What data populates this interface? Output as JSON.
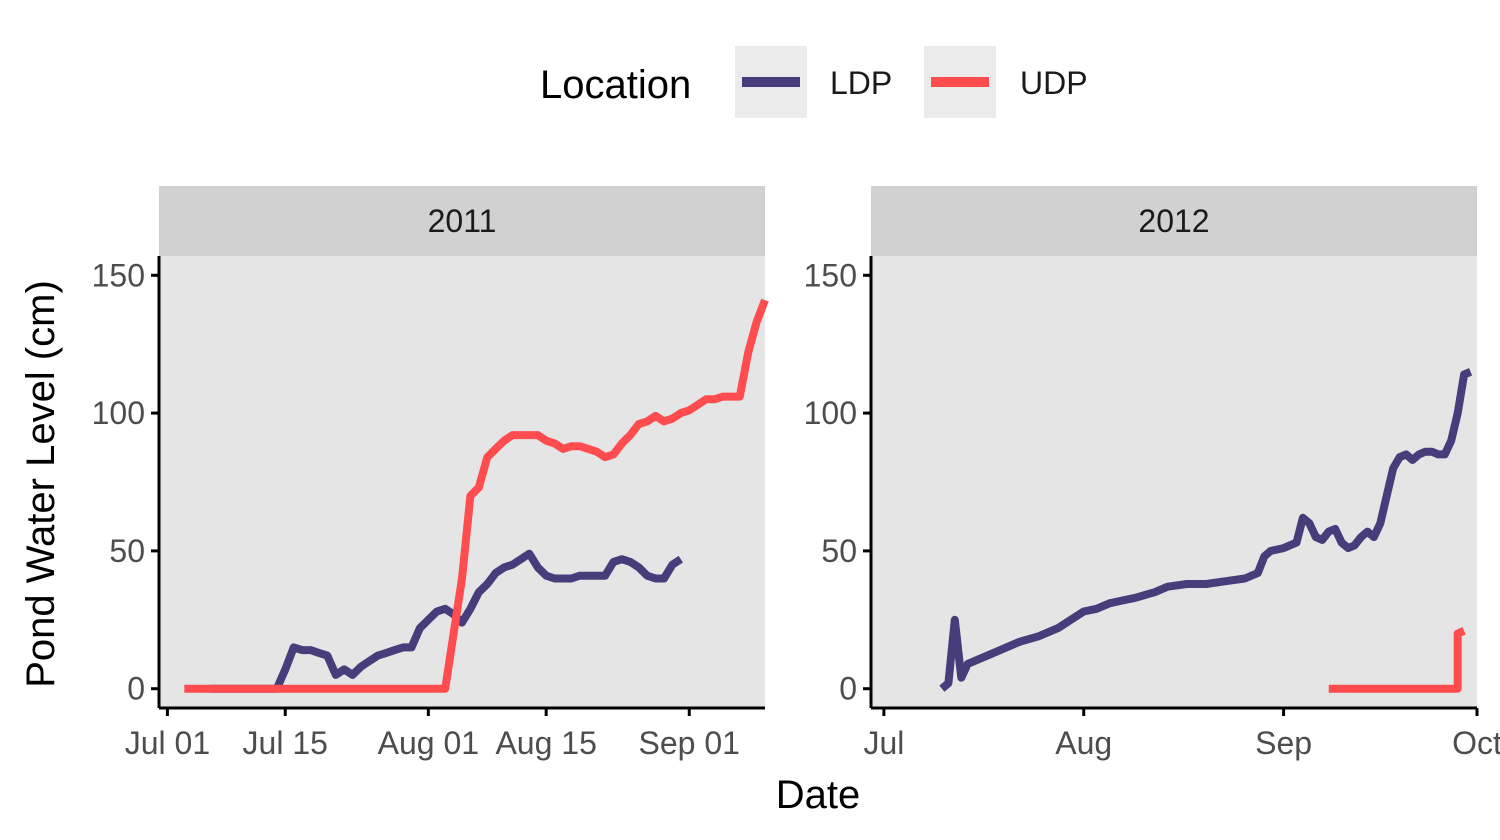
{
  "legend": {
    "title": "Location",
    "items": [
      {
        "name": "LDP",
        "color": "#483D7A"
      },
      {
        "name": "UDP",
        "color": "#FF4D4F"
      }
    ]
  },
  "axes": {
    "xlabel": "Date",
    "ylabel": "Pond Water Level (cm)"
  },
  "chart_data": [
    {
      "type": "line",
      "facet": "2011",
      "xlim": [
        "2011-06-30",
        "2011-09-10"
      ],
      "ylim": [
        -7,
        157
      ],
      "x_ticks": [
        {
          "date": "2011-07-01",
          "label": "Jul 01"
        },
        {
          "date": "2011-07-15",
          "label": "Jul 15"
        },
        {
          "date": "2011-08-01",
          "label": "Aug 01"
        },
        {
          "date": "2011-08-15",
          "label": "Aug 15"
        },
        {
          "date": "2011-09-01",
          "label": "Sep 01"
        }
      ],
      "y_ticks": [
        0,
        50,
        100,
        150
      ],
      "series": [
        {
          "name": "LDP",
          "color": "#483D7A",
          "points": [
            [
              "2011-07-06",
              0
            ],
            [
              "2011-07-14",
              0
            ],
            [
              "2011-07-15",
              7
            ],
            [
              "2011-07-16",
              15
            ],
            [
              "2011-07-17",
              14
            ],
            [
              "2011-07-18",
              14
            ],
            [
              "2011-07-19",
              13
            ],
            [
              "2011-07-20",
              12
            ],
            [
              "2011-07-21",
              5
            ],
            [
              "2011-07-22",
              7
            ],
            [
              "2011-07-23",
              5
            ],
            [
              "2011-07-24",
              8
            ],
            [
              "2011-07-25",
              10
            ],
            [
              "2011-07-26",
              12
            ],
            [
              "2011-07-27",
              13
            ],
            [
              "2011-07-28",
              14
            ],
            [
              "2011-07-29",
              15
            ],
            [
              "2011-07-30",
              15
            ],
            [
              "2011-07-31",
              22
            ],
            [
              "2011-08-01",
              25
            ],
            [
              "2011-08-02",
              28
            ],
            [
              "2011-08-03",
              29
            ],
            [
              "2011-08-04",
              27
            ],
            [
              "2011-08-05",
              24
            ],
            [
              "2011-08-06",
              29
            ],
            [
              "2011-08-07",
              35
            ],
            [
              "2011-08-08",
              38
            ],
            [
              "2011-08-09",
              42
            ],
            [
              "2011-08-10",
              44
            ],
            [
              "2011-08-11",
              45
            ],
            [
              "2011-08-12",
              47
            ],
            [
              "2011-08-13",
              49
            ],
            [
              "2011-08-14",
              44
            ],
            [
              "2011-08-15",
              41
            ],
            [
              "2011-08-16",
              40
            ],
            [
              "2011-08-17",
              40
            ],
            [
              "2011-08-18",
              40
            ],
            [
              "2011-08-19",
              41
            ],
            [
              "2011-08-20",
              41
            ],
            [
              "2011-08-21",
              41
            ],
            [
              "2011-08-22",
              41
            ],
            [
              "2011-08-23",
              46
            ],
            [
              "2011-08-24",
              47
            ],
            [
              "2011-08-25",
              46
            ],
            [
              "2011-08-26",
              44
            ],
            [
              "2011-08-27",
              41
            ],
            [
              "2011-08-28",
              40
            ],
            [
              "2011-08-29",
              40
            ],
            [
              "2011-08-30",
              45
            ],
            [
              "2011-08-31",
              47
            ]
          ]
        },
        {
          "name": "UDP",
          "color": "#FF4D4F",
          "points": [
            [
              "2011-07-03",
              0
            ],
            [
              "2011-08-03",
              0
            ],
            [
              "2011-08-05",
              40
            ],
            [
              "2011-08-06",
              70
            ],
            [
              "2011-08-07",
              73
            ],
            [
              "2011-08-08",
              84
            ],
            [
              "2011-08-09",
              87
            ],
            [
              "2011-08-10",
              90
            ],
            [
              "2011-08-11",
              92
            ],
            [
              "2011-08-12",
              92
            ],
            [
              "2011-08-13",
              92
            ],
            [
              "2011-08-14",
              92
            ],
            [
              "2011-08-15",
              90
            ],
            [
              "2011-08-16",
              89
            ],
            [
              "2011-08-17",
              87
            ],
            [
              "2011-08-18",
              88
            ],
            [
              "2011-08-19",
              88
            ],
            [
              "2011-08-20",
              87
            ],
            [
              "2011-08-21",
              86
            ],
            [
              "2011-08-22",
              84
            ],
            [
              "2011-08-23",
              85
            ],
            [
              "2011-08-24",
              89
            ],
            [
              "2011-08-25",
              92
            ],
            [
              "2011-08-26",
              96
            ],
            [
              "2011-08-27",
              97
            ],
            [
              "2011-08-28",
              99
            ],
            [
              "2011-08-29",
              97
            ],
            [
              "2011-08-30",
              98
            ],
            [
              "2011-08-31",
              100
            ],
            [
              "2011-09-01",
              101
            ],
            [
              "2011-09-02",
              103
            ],
            [
              "2011-09-03",
              105
            ],
            [
              "2011-09-04",
              105
            ],
            [
              "2011-09-05",
              106
            ],
            [
              "2011-09-06",
              106
            ],
            [
              "2011-09-07",
              106
            ],
            [
              "2011-09-08",
              122
            ],
            [
              "2011-09-09",
              133
            ],
            [
              "2011-09-10",
              141
            ]
          ]
        }
      ]
    },
    {
      "type": "line",
      "facet": "2012",
      "xlim": [
        "2012-06-29",
        "2012-10-01"
      ],
      "ylim": [
        -7,
        157
      ],
      "x_ticks": [
        {
          "date": "2012-07-01",
          "label": "Jul"
        },
        {
          "date": "2012-08-01",
          "label": "Aug"
        },
        {
          "date": "2012-09-01",
          "label": "Sep"
        },
        {
          "date": "2012-10-01",
          "label": "Oct"
        }
      ],
      "y_ticks": [
        0,
        50,
        100,
        150
      ],
      "series": [
        {
          "name": "LDP",
          "color": "#483D7A",
          "points": [
            [
              "2012-07-10",
              0
            ],
            [
              "2012-07-11",
              2
            ],
            [
              "2012-07-12",
              25
            ],
            [
              "2012-07-13",
              4
            ],
            [
              "2012-07-14",
              9
            ],
            [
              "2012-07-16",
              11
            ],
            [
              "2012-07-18",
              13
            ],
            [
              "2012-07-20",
              15
            ],
            [
              "2012-07-22",
              17
            ],
            [
              "2012-07-25",
              19
            ],
            [
              "2012-07-28",
              22
            ],
            [
              "2012-07-30",
              25
            ],
            [
              "2012-08-01",
              28
            ],
            [
              "2012-08-03",
              29
            ],
            [
              "2012-08-05",
              31
            ],
            [
              "2012-08-07",
              32
            ],
            [
              "2012-08-09",
              33
            ],
            [
              "2012-08-12",
              35
            ],
            [
              "2012-08-14",
              37
            ],
            [
              "2012-08-17",
              38
            ],
            [
              "2012-08-20",
              38
            ],
            [
              "2012-08-23",
              39
            ],
            [
              "2012-08-26",
              40
            ],
            [
              "2012-08-28",
              42
            ],
            [
              "2012-08-29",
              48
            ],
            [
              "2012-08-30",
              50
            ],
            [
              "2012-09-01",
              51
            ],
            [
              "2012-09-03",
              53
            ],
            [
              "2012-09-04",
              62
            ],
            [
              "2012-09-05",
              60
            ],
            [
              "2012-09-06",
              55
            ],
            [
              "2012-09-07",
              54
            ],
            [
              "2012-09-08",
              57
            ],
            [
              "2012-09-09",
              58
            ],
            [
              "2012-09-10",
              53
            ],
            [
              "2012-09-11",
              51
            ],
            [
              "2012-09-12",
              52
            ],
            [
              "2012-09-13",
              55
            ],
            [
              "2012-09-14",
              57
            ],
            [
              "2012-09-15",
              55
            ],
            [
              "2012-09-16",
              60
            ],
            [
              "2012-09-17",
              70
            ],
            [
              "2012-09-18",
              80
            ],
            [
              "2012-09-19",
              84
            ],
            [
              "2012-09-20",
              85
            ],
            [
              "2012-09-21",
              83
            ],
            [
              "2012-09-22",
              85
            ],
            [
              "2012-09-23",
              86
            ],
            [
              "2012-09-24",
              86
            ],
            [
              "2012-09-25",
              85
            ],
            [
              "2012-09-26",
              85
            ],
            [
              "2012-09-27",
              90
            ],
            [
              "2012-09-28",
              100
            ],
            [
              "2012-09-29",
              114
            ],
            [
              "2012-09-30",
              115
            ]
          ]
        },
        {
          "name": "UDP",
          "color": "#FF4D4F",
          "points": [
            [
              "2012-09-08",
              0
            ],
            [
              "2012-09-28",
              0
            ],
            [
              "2012-09-28",
              20
            ],
            [
              "2012-09-29",
              21
            ]
          ]
        }
      ]
    }
  ]
}
